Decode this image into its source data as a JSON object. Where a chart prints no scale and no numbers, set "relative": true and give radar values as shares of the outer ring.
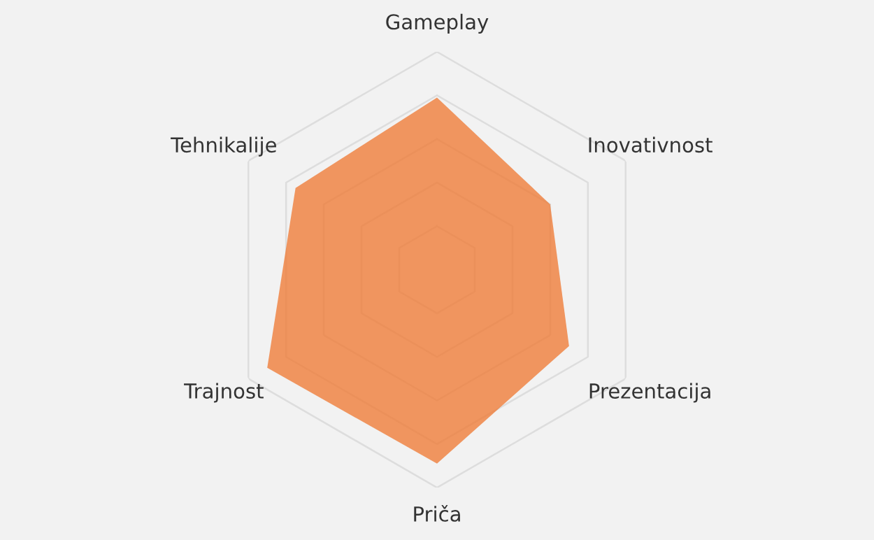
{
  "chart_data": {
    "type": "radar",
    "relative": true,
    "grid": true,
    "categories": [
      "Gameplay",
      "Inovativnost",
      "Prezentacija",
      "Priča",
      "Trajnost",
      "Tehnikalije"
    ],
    "series": [
      {
        "color": "#ef7d3a",
        "values": [
          0.79,
          0.6,
          0.7,
          0.89,
          0.9,
          0.75
        ]
      }
    ]
  }
}
